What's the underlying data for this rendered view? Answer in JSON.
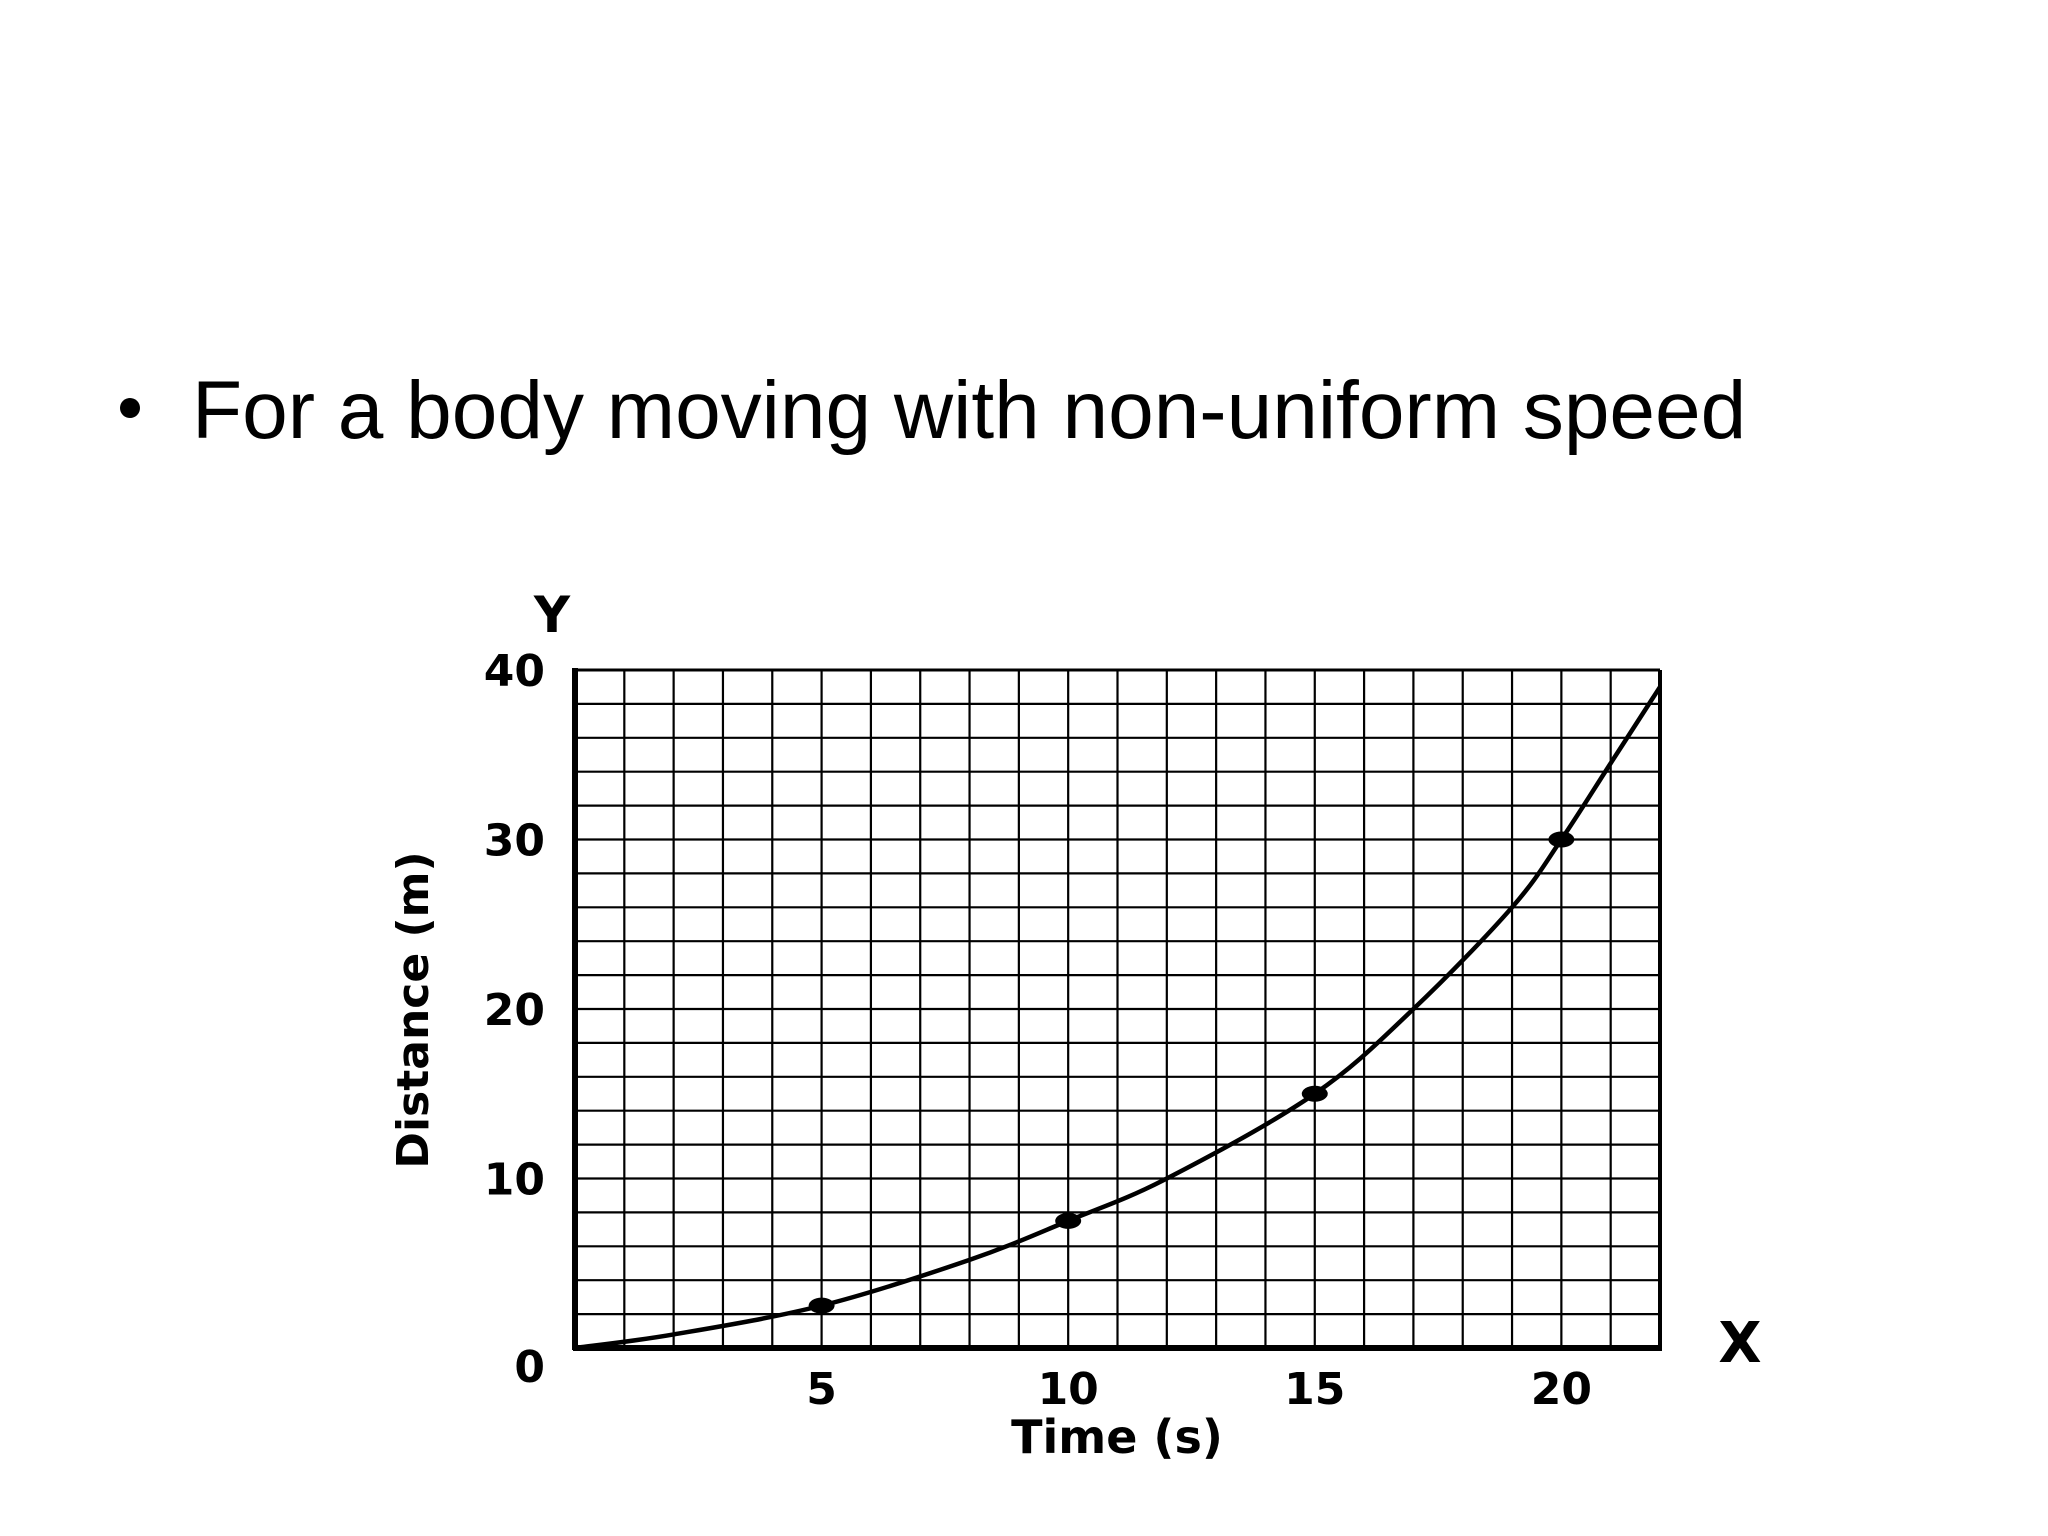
{
  "slide": {
    "bullet_text": "For a body moving with non-uniform speed"
  },
  "chart_data": {
    "type": "line",
    "title": "",
    "xlabel": "Time (s)",
    "ylabel": "Distance (m)",
    "x_axis_letter": "X",
    "y_axis_letter": "Y",
    "origin_label": "0",
    "xlim": [
      0,
      22
    ],
    "ylim": [
      0,
      40
    ],
    "x_ticks": [
      5,
      10,
      15,
      20
    ],
    "y_ticks": [
      10,
      20,
      30,
      40
    ],
    "grid": true,
    "series": [
      {
        "points": [
          [
            5,
            2.5
          ],
          [
            10,
            7.5
          ],
          [
            15,
            15
          ],
          [
            20,
            30
          ]
        ],
        "curve": [
          [
            0,
            0
          ],
          [
            2,
            0.8
          ],
          [
            5,
            2.5
          ],
          [
            8,
            5.2
          ],
          [
            10,
            7.5
          ],
          [
            12,
            10
          ],
          [
            15,
            15
          ],
          [
            17,
            20
          ],
          [
            19,
            26
          ],
          [
            20,
            30
          ],
          [
            21,
            34.5
          ],
          [
            22,
            39
          ]
        ]
      }
    ]
  }
}
